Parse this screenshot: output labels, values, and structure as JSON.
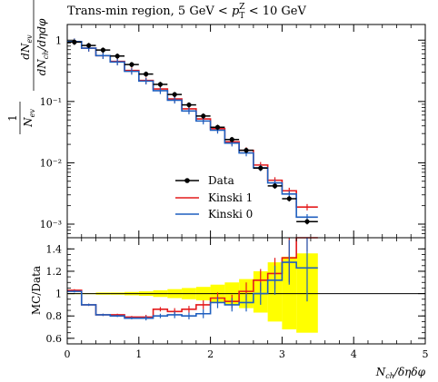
{
  "chart_data": [
    {
      "type": "line",
      "panel": "main",
      "title": "Trans-min region, 5 GeV < p_T^Z < 10 GeV",
      "title_parts": {
        "prefix": "Trans-min region, 5 GeV < ",
        "p": "p",
        "sub": "T",
        "sup": "Z",
        "suffix": " < 10 GeV"
      },
      "ylabel": "1/N_ev dN_ev/dN_ch/dηdφ",
      "ylabel_parts": {
        "one": "1",
        "den": "N",
        "den_sub": "ev",
        "num": "dN",
        "num_sub": "ev",
        "rest_a": "dN",
        "rest_sub": "ch",
        "rest_b": "/dηdφ"
      },
      "yscale": "log",
      "ylim": [
        0.0006,
        1.8
      ],
      "xlim": [
        0,
        5
      ],
      "y_ticks": [
        "1",
        "10⁻¹",
        "10⁻²",
        "10⁻³"
      ],
      "y_tick_values": [
        1,
        0.1,
        0.01,
        0.001
      ],
      "legend_position": "center-right",
      "legend": [
        "Data",
        "Kinski 1",
        "Kinski 0"
      ],
      "bin_edges": [
        0.0,
        0.2,
        0.4,
        0.6,
        0.8,
        1.0,
        1.2,
        1.4,
        1.6,
        1.8,
        2.0,
        2.2,
        2.4,
        2.6,
        2.8,
        3.0,
        3.2,
        3.5
      ],
      "series": [
        {
          "name": "Data",
          "color": "#000000",
          "x": [
            0.1,
            0.3,
            0.5,
            0.7,
            0.9,
            1.1,
            1.3,
            1.5,
            1.7,
            1.9,
            2.1,
            2.3,
            2.5,
            2.7,
            2.9,
            3.1,
            3.35
          ],
          "values": [
            0.93,
            0.82,
            0.69,
            0.55,
            0.4,
            0.28,
            0.19,
            0.13,
            0.088,
            0.058,
            0.038,
            0.024,
            0.016,
            0.0082,
            0.0042,
            0.0026,
            0.0011
          ]
        },
        {
          "name": "Kinski 1",
          "color": "#e41a1c",
          "values": [
            0.95,
            0.74,
            0.56,
            0.45,
            0.32,
            0.22,
            0.16,
            0.11,
            0.076,
            0.052,
            0.036,
            0.022,
            0.016,
            0.0092,
            0.0052,
            0.0035,
            0.0019
          ]
        },
        {
          "name": "Kinski 0",
          "color": "#1f5fbf",
          "values": [
            0.95,
            0.74,
            0.56,
            0.44,
            0.31,
            0.215,
            0.15,
            0.105,
            0.07,
            0.048,
            0.034,
            0.021,
            0.0145,
            0.0083,
            0.0047,
            0.0031,
            0.0013
          ]
        }
      ]
    },
    {
      "type": "line",
      "panel": "ratio",
      "ylabel": "MC/Data",
      "xlabel": "N_ch/δηδφ",
      "xlabel_parts": {
        "n": "N",
        "sub": "ch",
        "rest": "/δηδφ"
      },
      "xlim": [
        0,
        5
      ],
      "ylim": [
        0.55,
        1.5
      ],
      "x_ticks": [
        "0",
        "1",
        "2",
        "3",
        "4",
        "5"
      ],
      "x_tick_values": [
        0,
        1,
        2,
        3,
        4,
        5
      ],
      "y_ticks": [
        "0.6",
        "0.8",
        "1",
        "1.2",
        "1.4"
      ],
      "y_tick_values": [
        0.6,
        0.8,
        1.0,
        1.2,
        1.4
      ],
      "band_color": "#ffff00",
      "band_lower": [
        0.995,
        0.995,
        0.99,
        0.99,
        0.985,
        0.98,
        0.97,
        0.96,
        0.95,
        0.94,
        0.92,
        0.9,
        0.87,
        0.83,
        0.75,
        0.68,
        0.65
      ],
      "band_upper": [
        1.005,
        1.005,
        1.01,
        1.01,
        1.015,
        1.02,
        1.03,
        1.04,
        1.05,
        1.06,
        1.08,
        1.1,
        1.13,
        1.2,
        1.28,
        1.33,
        1.36
      ],
      "series": [
        {
          "name": "Kinski 1",
          "color": "#e41a1c",
          "values": [
            1.03,
            0.9,
            0.81,
            0.81,
            0.79,
            0.79,
            0.86,
            0.84,
            0.86,
            0.9,
            0.96,
            0.93,
            1.02,
            1.12,
            1.18,
            1.32,
            1.73
          ],
          "errors": [
            0.01,
            0.01,
            0.01,
            0.01,
            0.01,
            0.02,
            0.02,
            0.03,
            0.03,
            0.04,
            0.05,
            0.06,
            0.08,
            0.1,
            0.14,
            0.22,
            0.35
          ]
        },
        {
          "name": "Kinski 0",
          "color": "#1f5fbf",
          "values": [
            1.02,
            0.9,
            0.81,
            0.8,
            0.78,
            0.78,
            0.8,
            0.81,
            0.8,
            0.82,
            0.92,
            0.9,
            0.92,
            1.0,
            1.12,
            1.28,
            1.23
          ],
          "errors": [
            0.01,
            0.01,
            0.01,
            0.01,
            0.01,
            0.02,
            0.02,
            0.03,
            0.03,
            0.04,
            0.05,
            0.06,
            0.08,
            0.1,
            0.13,
            0.2,
            0.3
          ]
        }
      ]
    }
  ]
}
